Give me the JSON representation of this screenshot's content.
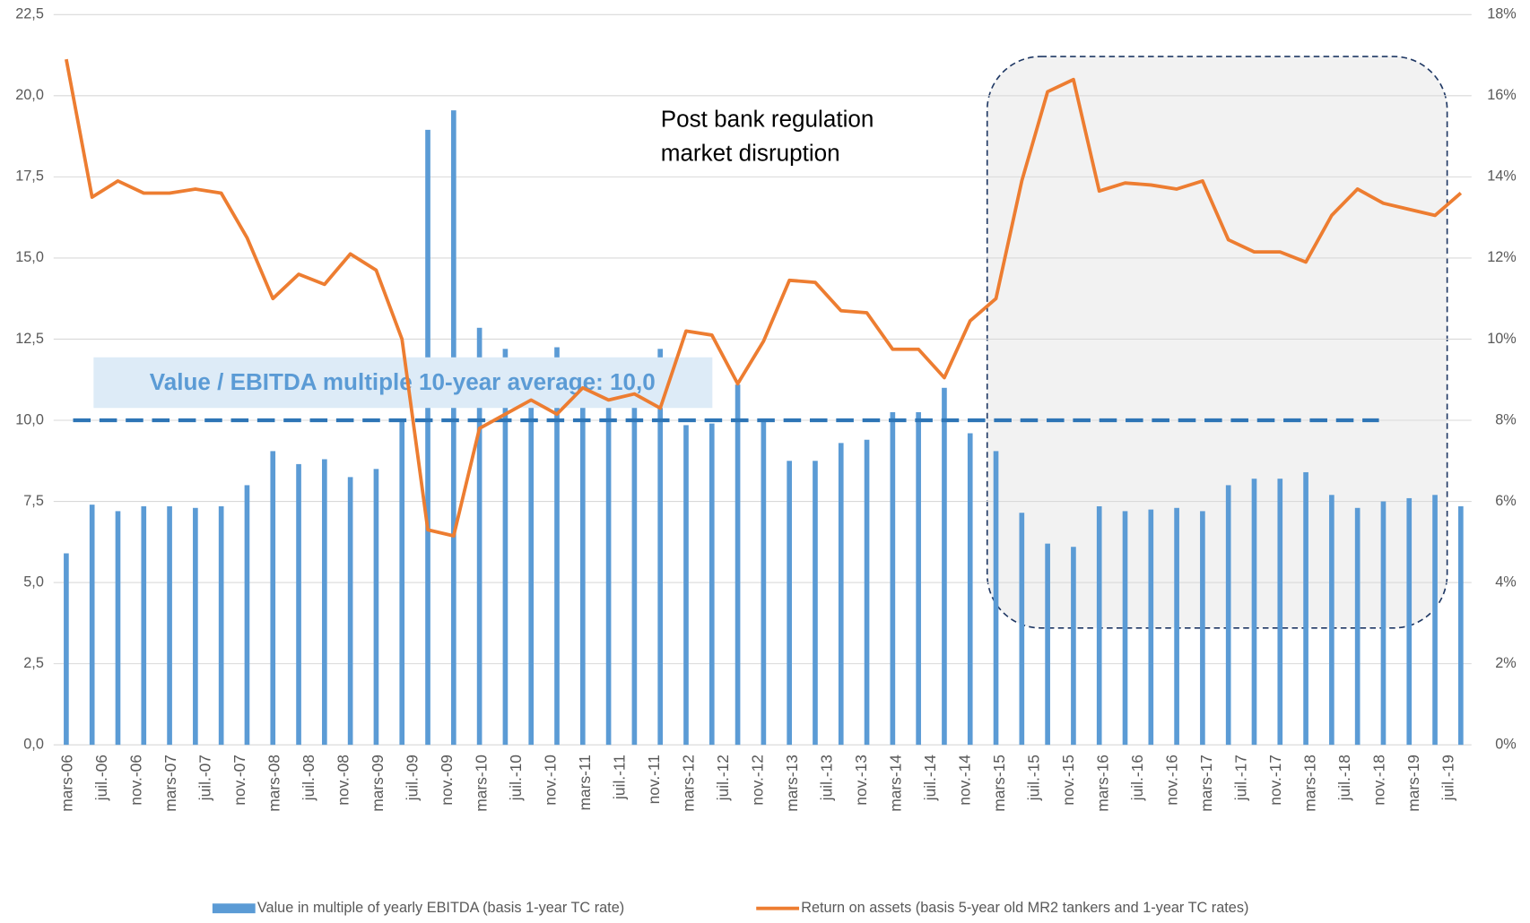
{
  "chart_data": {
    "type": "bar_line",
    "x_tick_labels": [
      "mars-06",
      "juil.-06",
      "nov.-06",
      "mars-07",
      "juil.-07",
      "nov.-07",
      "mars-08",
      "juil.-08",
      "nov.-08",
      "mars-09",
      "juil.-09",
      "nov.-09",
      "mars-10",
      "juil.-10",
      "nov.-10",
      "mars-11",
      "juil.-11",
      "nov.-11",
      "mars-12",
      "juil.-12",
      "nov.-12",
      "mars-13",
      "juil.-13",
      "nov.-13",
      "mars-14",
      "juil.-14",
      "nov.-14",
      "mars-15",
      "juil.-15",
      "nov.-15",
      "mars-16",
      "juil.-16",
      "nov.-16",
      "mars-17",
      "juil.-17",
      "nov.-17",
      "mars-18",
      "juil.-18",
      "nov.-18",
      "mars-19",
      "juil.-19"
    ],
    "series": [
      {
        "name": "Value in multiple of yearly EBITDA (basis 1-year TC rate)",
        "type": "bar",
        "color": "#5b9bd5",
        "values": [
          5.9,
          7.4,
          7.2,
          7.35,
          7.35,
          7.3,
          7.35,
          8.0,
          9.05,
          8.65,
          8.8,
          8.25,
          8.5,
          10.0,
          18.95,
          19.55,
          12.85,
          12.2,
          11.0,
          12.25,
          10.8,
          10.5,
          10.8,
          12.2,
          9.85,
          9.9,
          11.1,
          10.05,
          8.75,
          8.75,
          9.3,
          9.4,
          10.25,
          10.25,
          11.0,
          9.6,
          9.05,
          7.15,
          6.2,
          6.1,
          7.35,
          7.2,
          7.25,
          7.3,
          7.2,
          8.0,
          8.2,
          8.2,
          8.4,
          7.7,
          7.3,
          7.5,
          7.6,
          7.7,
          7.35
        ]
      },
      {
        "name": "Return on assets (basis 5-year old MR2 tankers and 1-year TC rates)",
        "type": "line",
        "axis": "y2",
        "color": "#ed7d31",
        "values": [
          16.9,
          13.5,
          13.9,
          13.6,
          13.6,
          13.7,
          13.6,
          12.5,
          11.0,
          11.6,
          11.35,
          12.1,
          11.7,
          10.0,
          5.3,
          5.15,
          7.8,
          8.15,
          8.5,
          8.15,
          8.8,
          8.5,
          8.65,
          8.3,
          10.2,
          10.1,
          8.9,
          9.95,
          11.45,
          11.4,
          10.7,
          10.65,
          9.75,
          9.75,
          9.05,
          10.45,
          11.0,
          13.9,
          16.1,
          16.4,
          13.65,
          13.85,
          13.8,
          13.7,
          13.9,
          12.45,
          12.15,
          12.15,
          11.9,
          13.05,
          13.7,
          13.35,
          13.2,
          13.05,
          13.6
        ]
      }
    ],
    "reference_line": {
      "value": 10,
      "label": "Value / EBITDA multiple 10-year average: 10,0",
      "color": "#2e75b6"
    },
    "annotation": [
      "Post bank regulation",
      "market disruption"
    ],
    "ylim": [
      0,
      22.5
    ],
    "yticks": [
      {
        "value": 0,
        "label": "0,0"
      },
      {
        "value": 2.5,
        "label": "2,5"
      },
      {
        "value": 5,
        "label": "5,0"
      },
      {
        "value": 7.5,
        "label": "7,5"
      },
      {
        "value": 10,
        "label": "10,0"
      },
      {
        "value": 12.5,
        "label": "12,5"
      },
      {
        "value": 15,
        "label": "15,0"
      },
      {
        "value": 17.5,
        "label": "17,5"
      },
      {
        "value": 20,
        "label": "20,0"
      },
      {
        "value": 22.5,
        "label": "22,5"
      }
    ],
    "y2lim": [
      0,
      18
    ],
    "y2ticks": [
      {
        "value": 0,
        "label": "0%"
      },
      {
        "value": 2,
        "label": "2%"
      },
      {
        "value": 4,
        "label": "4%"
      },
      {
        "value": 6,
        "label": "6%"
      },
      {
        "value": 8,
        "label": "8%"
      },
      {
        "value": 10,
        "label": "10%"
      },
      {
        "value": 12,
        "label": "12%"
      },
      {
        "value": 14,
        "label": "14%"
      },
      {
        "value": 16,
        "label": "16%"
      },
      {
        "value": 18,
        "label": "18%"
      }
    ],
    "grid": true,
    "legend": "bottom"
  }
}
